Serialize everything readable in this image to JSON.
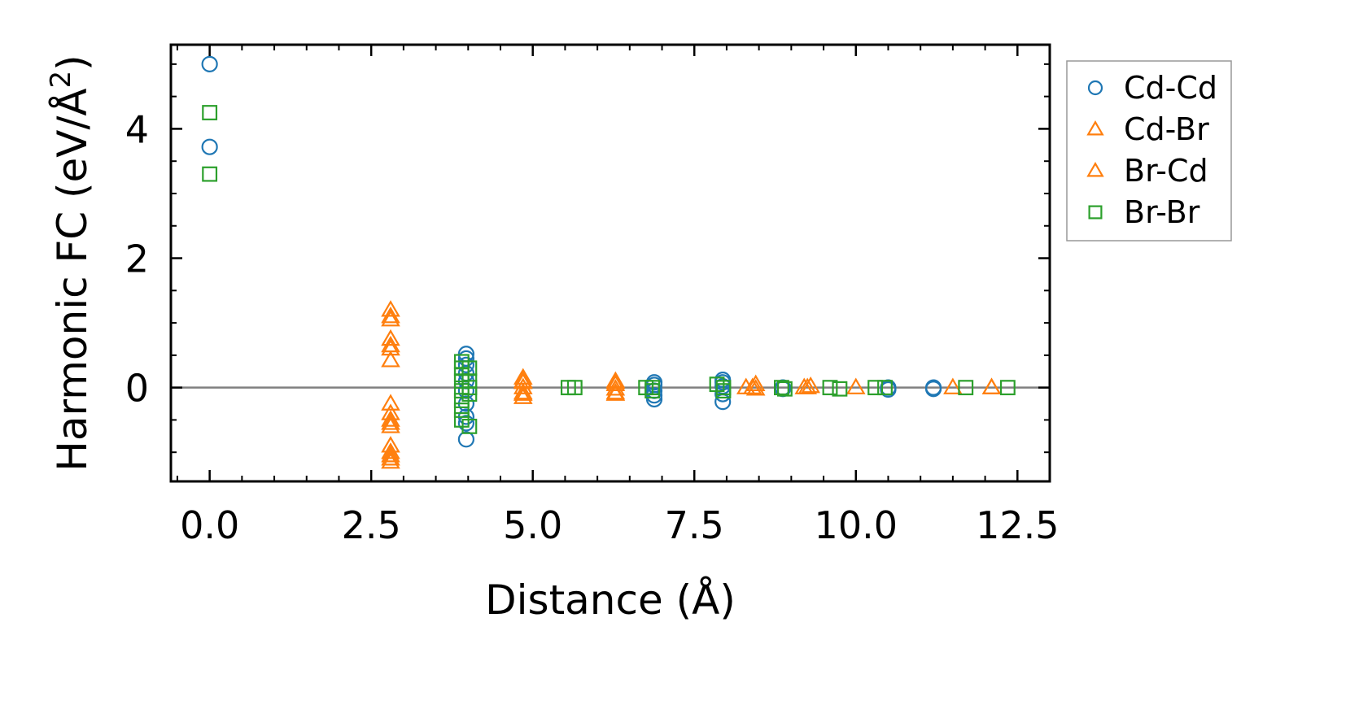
{
  "chart_data": {
    "type": "scatter",
    "xlabel": "Distance (Å)",
    "ylabel": "Harmonic FC (eV/Å",
    "ylabel_sup": "2",
    "ylabel_close": ")",
    "xlim": [
      -0.6,
      13.0
    ],
    "ylim": [
      -1.45,
      5.3
    ],
    "xticks": [
      0,
      2.5,
      5,
      7.5,
      10,
      12.5
    ],
    "xtick_labels": [
      "0.0",
      "2.5",
      "5.0",
      "7.5",
      "10.0",
      "12.5"
    ],
    "yticks": [
      0,
      2,
      4
    ],
    "ytick_labels": [
      "0",
      "2",
      "4"
    ],
    "grid": false,
    "legend_position": "outside-right",
    "zero_line_color": "#808080",
    "series": [
      {
        "name": "Cd-Cd",
        "marker": "circle",
        "color": "#1f77b4",
        "points": [
          [
            0,
            5.0
          ],
          [
            0,
            3.72
          ],
          [
            3.97,
            0.52
          ],
          [
            3.97,
            0.45
          ],
          [
            3.97,
            0.35
          ],
          [
            3.97,
            0.22
          ],
          [
            3.97,
            0.1
          ],
          [
            3.97,
            -0.05
          ],
          [
            3.97,
            -0.25
          ],
          [
            3.97,
            -0.45
          ],
          [
            3.97,
            -0.55
          ],
          [
            3.97,
            -0.8
          ],
          [
            6.88,
            0.08
          ],
          [
            6.88,
            0.04
          ],
          [
            6.88,
            -0.05
          ],
          [
            6.88,
            -0.12
          ],
          [
            6.88,
            -0.18
          ],
          [
            7.94,
            0.12
          ],
          [
            7.94,
            0.08
          ],
          [
            7.94,
            0.02
          ],
          [
            7.94,
            -0.1
          ],
          [
            7.94,
            -0.22
          ],
          [
            8.87,
            -0.02
          ],
          [
            8.87,
            0.0
          ],
          [
            10.5,
            0.0
          ],
          [
            10.5,
            -0.03
          ],
          [
            11.2,
            -0.02
          ],
          [
            11.2,
            0.0
          ]
        ]
      },
      {
        "name": "Cd-Br",
        "marker": "triangle",
        "color": "#ff7f0e",
        "points": [
          [
            2.8,
            1.2
          ],
          [
            2.8,
            1.05
          ],
          [
            2.8,
            0.75
          ],
          [
            2.8,
            0.65
          ],
          [
            2.8,
            0.42
          ],
          [
            2.8,
            -0.25
          ],
          [
            2.8,
            -0.4
          ],
          [
            2.8,
            -0.5
          ],
          [
            2.8,
            -0.6
          ],
          [
            2.8,
            -0.9
          ],
          [
            2.8,
            -1.0
          ],
          [
            2.8,
            -1.1
          ],
          [
            2.8,
            -1.15
          ],
          [
            4.85,
            0.15
          ],
          [
            4.85,
            0.08
          ],
          [
            4.85,
            0.0
          ],
          [
            4.85,
            -0.08
          ],
          [
            4.85,
            -0.15
          ],
          [
            6.28,
            0.1
          ],
          [
            6.28,
            0.05
          ],
          [
            6.28,
            -0.02
          ],
          [
            6.28,
            -0.1
          ],
          [
            8.3,
            0.0
          ],
          [
            8.45,
            0.05
          ],
          [
            8.45,
            -0.02
          ],
          [
            9.2,
            0.0
          ],
          [
            9.3,
            0.02
          ],
          [
            10.0,
            0.0
          ],
          [
            11.5,
            0.0
          ],
          [
            12.1,
            0.0
          ]
        ]
      },
      {
        "name": "Br-Cd",
        "marker": "triangle",
        "color": "#ff7f0e",
        "points": [
          [
            2.8,
            1.1
          ],
          [
            2.8,
            0.6
          ],
          [
            2.8,
            -0.55
          ],
          [
            2.8,
            -1.05
          ],
          [
            4.85,
            0.1
          ],
          [
            4.85,
            -0.1
          ],
          [
            6.28,
            0.08
          ],
          [
            6.28,
            -0.08
          ],
          [
            8.4,
            0.0
          ],
          [
            9.25,
            0.0
          ],
          [
            12.1,
            0.0
          ]
        ]
      },
      {
        "name": "Br-Br",
        "marker": "square",
        "color": "#2ca02c",
        "points": [
          [
            0,
            4.25
          ],
          [
            0,
            3.3
          ],
          [
            3.9,
            0.4
          ],
          [
            3.9,
            0.3
          ],
          [
            3.9,
            0.2
          ],
          [
            3.9,
            0.1
          ],
          [
            3.9,
            -0.05
          ],
          [
            3.9,
            -0.2
          ],
          [
            3.9,
            -0.35
          ],
          [
            3.9,
            -0.5
          ],
          [
            4.02,
            0.3
          ],
          [
            4.02,
            0.1
          ],
          [
            4.02,
            0.0
          ],
          [
            4.02,
            -0.1
          ],
          [
            4.02,
            -0.6
          ],
          [
            5.55,
            0.0
          ],
          [
            5.65,
            0.0
          ],
          [
            6.75,
            0.0
          ],
          [
            6.85,
            0.0
          ],
          [
            6.85,
            -0.05
          ],
          [
            7.85,
            0.05
          ],
          [
            7.95,
            0.0
          ],
          [
            7.95,
            -0.05
          ],
          [
            8.85,
            0.0
          ],
          [
            8.9,
            -0.02
          ],
          [
            9.6,
            0.0
          ],
          [
            9.75,
            -0.02
          ],
          [
            10.3,
            0.0
          ],
          [
            10.45,
            0.0
          ],
          [
            11.7,
            0.0
          ],
          [
            12.35,
            0.0
          ]
        ]
      }
    ]
  }
}
